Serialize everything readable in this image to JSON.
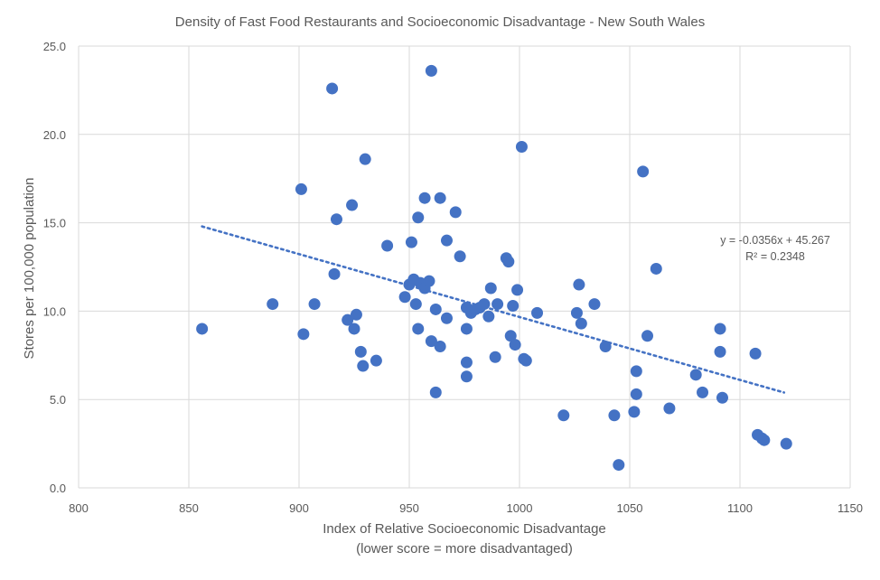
{
  "chart_data": {
    "type": "scatter",
    "title": "Density of Fast Food Restaurants and Socioeconomic Disadvantage - New South Wales",
    "xlabel_line1": "Index of Relative Socioeconomic Disadvantage",
    "xlabel_line2": "(lower score = more disadvantaged)",
    "ylabel": "Stores per 100,000 population",
    "xlim": [
      800,
      1150
    ],
    "ylim": [
      0,
      25
    ],
    "x_ticks": [
      800,
      850,
      900,
      950,
      1000,
      1050,
      1100,
      1150
    ],
    "y_ticks": [
      0,
      5,
      10,
      15,
      20,
      25
    ],
    "x_tick_labels": [
      "800",
      "850",
      "900",
      "950",
      "1000",
      "1050",
      "1100",
      "1150"
    ],
    "y_tick_labels": [
      "0.0",
      "5.0",
      "10.0",
      "15.0",
      "20.0",
      "25.0"
    ],
    "grid": true,
    "legend": "none",
    "trendline": {
      "equation": "y = -0.0356x + 45.267",
      "r_squared": "R² = 0.2348",
      "slope": -0.0356,
      "intercept": 45.267,
      "x_range": [
        856,
        1120
      ]
    },
    "points": [
      [
        856,
        9.0
      ],
      [
        888,
        10.4
      ],
      [
        901,
        16.9
      ],
      [
        902,
        8.7
      ],
      [
        907,
        10.4
      ],
      [
        915,
        22.6
      ],
      [
        916,
        12.1
      ],
      [
        917,
        15.2
      ],
      [
        922,
        9.5
      ],
      [
        924,
        16.0
      ],
      [
        925,
        9.0
      ],
      [
        926,
        9.8
      ],
      [
        928,
        7.7
      ],
      [
        929,
        6.9
      ],
      [
        930,
        18.6
      ],
      [
        935,
        7.2
      ],
      [
        940,
        13.7
      ],
      [
        948,
        10.8
      ],
      [
        950,
        11.5
      ],
      [
        951,
        13.9
      ],
      [
        952,
        11.8
      ],
      [
        953,
        10.4
      ],
      [
        954,
        15.3
      ],
      [
        954,
        9.0
      ],
      [
        955,
        11.6
      ],
      [
        957,
        16.4
      ],
      [
        957,
        11.3
      ],
      [
        959,
        11.7
      ],
      [
        960,
        8.3
      ],
      [
        960,
        23.6
      ],
      [
        962,
        5.4
      ],
      [
        962,
        10.1
      ],
      [
        964,
        16.4
      ],
      [
        964,
        8.0
      ],
      [
        967,
        14.0
      ],
      [
        967,
        9.6
      ],
      [
        971,
        15.6
      ],
      [
        973,
        13.1
      ],
      [
        976,
        10.2
      ],
      [
        976,
        9.0
      ],
      [
        976,
        7.1
      ],
      [
        976,
        6.3
      ],
      [
        978,
        9.9
      ],
      [
        980,
        10.1
      ],
      [
        982,
        10.2
      ],
      [
        984,
        10.4
      ],
      [
        986,
        9.7
      ],
      [
        987,
        11.3
      ],
      [
        989,
        7.4
      ],
      [
        990,
        10.4
      ],
      [
        994,
        13.0
      ],
      [
        995,
        12.8
      ],
      [
        996,
        8.6
      ],
      [
        997,
        10.3
      ],
      [
        998,
        8.1
      ],
      [
        999,
        11.2
      ],
      [
        1001,
        19.3
      ],
      [
        1002,
        7.3
      ],
      [
        1003,
        7.2
      ],
      [
        1008,
        9.9
      ],
      [
        1020,
        4.1
      ],
      [
        1026,
        9.9
      ],
      [
        1027,
        11.5
      ],
      [
        1028,
        9.3
      ],
      [
        1034,
        10.4
      ],
      [
        1039,
        8.0
      ],
      [
        1043,
        4.1
      ],
      [
        1045,
        1.3
      ],
      [
        1052,
        4.3
      ],
      [
        1053,
        6.6
      ],
      [
        1053,
        5.3
      ],
      [
        1056,
        17.9
      ],
      [
        1058,
        8.6
      ],
      [
        1062,
        12.4
      ],
      [
        1068,
        4.5
      ],
      [
        1080,
        6.4
      ],
      [
        1083,
        5.4
      ],
      [
        1091,
        9.0
      ],
      [
        1091,
        7.7
      ],
      [
        1092,
        5.1
      ],
      [
        1107,
        7.6
      ],
      [
        1108,
        3.0
      ],
      [
        1110,
        2.8
      ],
      [
        1111,
        2.7
      ],
      [
        1121,
        2.5
      ]
    ],
    "colors": {
      "marker": "#4472C4",
      "trendline": "#4472C4",
      "grid": "#d9d9d9",
      "text": "#595959"
    }
  }
}
